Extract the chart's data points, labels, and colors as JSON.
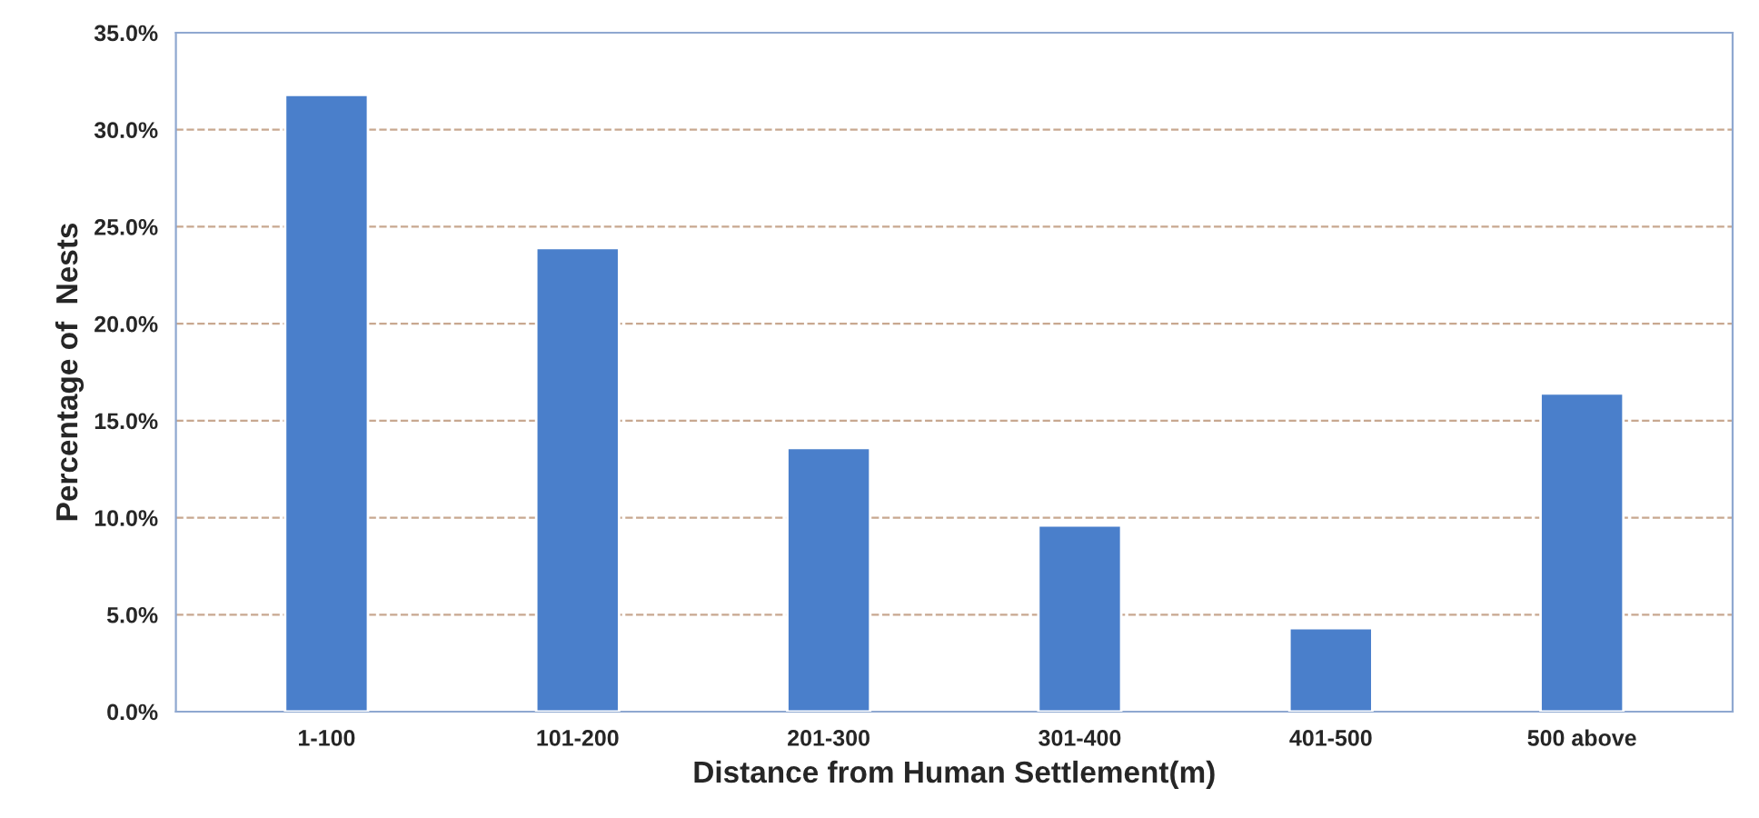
{
  "chart_data": {
    "type": "bar",
    "xlabel": "Distance from Human Settlement(m)",
    "ylabel": "Percentage of  Nests",
    "categories": [
      "1-100",
      "101-200",
      "201-300",
      "301-400",
      "401-500",
      "500 above"
    ],
    "values": [
      31.8,
      23.9,
      13.6,
      9.6,
      4.3,
      16.4
    ],
    "color": "#4a7fcb",
    "ylim": [
      0,
      35
    ],
    "yticks": [
      {
        "value": 0,
        "label": "0.0%"
      },
      {
        "value": 5,
        "label": "5.0%"
      },
      {
        "value": 10,
        "label": "10.0%"
      },
      {
        "value": 15,
        "label": "15.0%"
      },
      {
        "value": 20,
        "label": "20.0%"
      },
      {
        "value": 25,
        "label": "25.0%"
      },
      {
        "value": 30,
        "label": "30.0%"
      },
      {
        "value": 35,
        "label": "35.0%"
      }
    ],
    "grid": "y"
  }
}
